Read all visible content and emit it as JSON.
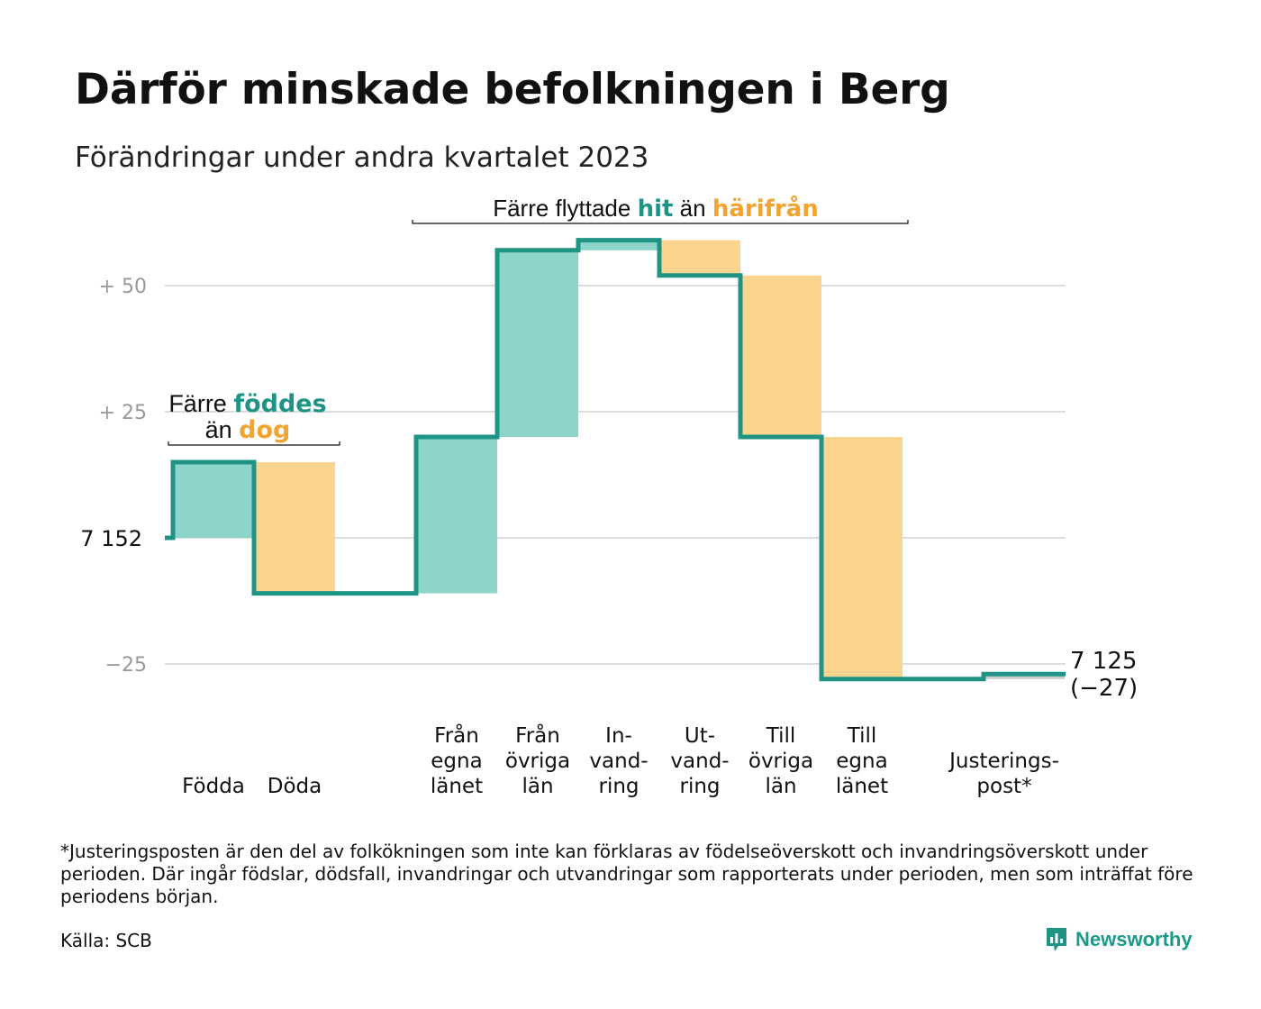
{
  "title": "Därför minskade befolkningen i Berg",
  "subtitle": "Förändringar under andra kvartalet 2023",
  "footnote": "*Justeringsposten är den del av folkökningen som inte kan förklaras av födelseöverskott och invandringsöverskott under perioden. Där ingår födslar, dödsfall, invandringar och utvandringar som rapporterats under perioden, men som inträffat före periodens början.",
  "source": "Källa: SCB",
  "brand": "Newsworthy",
  "colors": {
    "inflow": "#8dd5cb",
    "outflow": "#fbd58e",
    "line": "#1f9484",
    "accent_teal": "#1f9484",
    "accent_orange": "#f2a330",
    "grid": "#dddddd",
    "tick": "#999999"
  },
  "chart_data": {
    "type": "waterfall",
    "start_value": 7152,
    "start_label": "7  152",
    "end_label_value": "7 125",
    "end_label_change": "(−27)",
    "y_ticks": [
      {
        "value": 50,
        "label": "+  50"
      },
      {
        "value": 25,
        "label": "+  25"
      },
      {
        "value": -25,
        "label": "−25"
      }
    ],
    "ylim": [
      -30,
      60
    ],
    "groups": [
      {
        "name": "births_deaths",
        "annotation": [
          "Färre ",
          {
            "text": "föddes",
            "color": "teal"
          },
          "|än ",
          {
            "text": "dog",
            "color": "orange"
          }
        ],
        "categories": [
          "Födda",
          "Döda"
        ]
      },
      {
        "name": "moves",
        "annotation": [
          "Färre flyttade ",
          {
            "text": "hit",
            "color": "teal"
          },
          "  än ",
          {
            "text": "härifrån",
            "color": "orange"
          }
        ],
        "categories": [
          "Från egna länet",
          "Från övriga län",
          "In- vand- ring",
          "Ut- vand- ring",
          "Till övriga län",
          "Till egna länet"
        ]
      }
    ],
    "bars": [
      {
        "category": "Födda",
        "label_lines": [
          "Födda"
        ],
        "change": 15,
        "type": "inflow"
      },
      {
        "category": "Döda",
        "label_lines": [
          "Döda"
        ],
        "change": -26,
        "type": "outflow"
      },
      {
        "category": "Från egna länet",
        "label_lines": [
          "Från",
          "egna",
          "länet"
        ],
        "change": 31,
        "type": "inflow"
      },
      {
        "category": "Från övriga län",
        "label_lines": [
          "Från",
          "övriga",
          "län"
        ],
        "change": 37,
        "type": "inflow"
      },
      {
        "category": "In- vand- ring",
        "label_lines": [
          "In-",
          "vand-",
          "ring"
        ],
        "change": 2,
        "type": "inflow"
      },
      {
        "category": "Ut- vand- ring",
        "label_lines": [
          "Ut-",
          "vand-",
          "ring"
        ],
        "change": -7,
        "type": "outflow"
      },
      {
        "category": "Till övriga län",
        "label_lines": [
          "Till",
          "övriga",
          "län"
        ],
        "change": -32,
        "type": "outflow"
      },
      {
        "category": "Till egna länet",
        "label_lines": [
          "Till",
          "egna",
          "länet"
        ],
        "change": -48,
        "type": "outflow"
      },
      {
        "category": "Justeringspost*",
        "label_lines": [
          "Justerings-",
          "post*"
        ],
        "change": 1,
        "type": "adjustment"
      }
    ]
  }
}
